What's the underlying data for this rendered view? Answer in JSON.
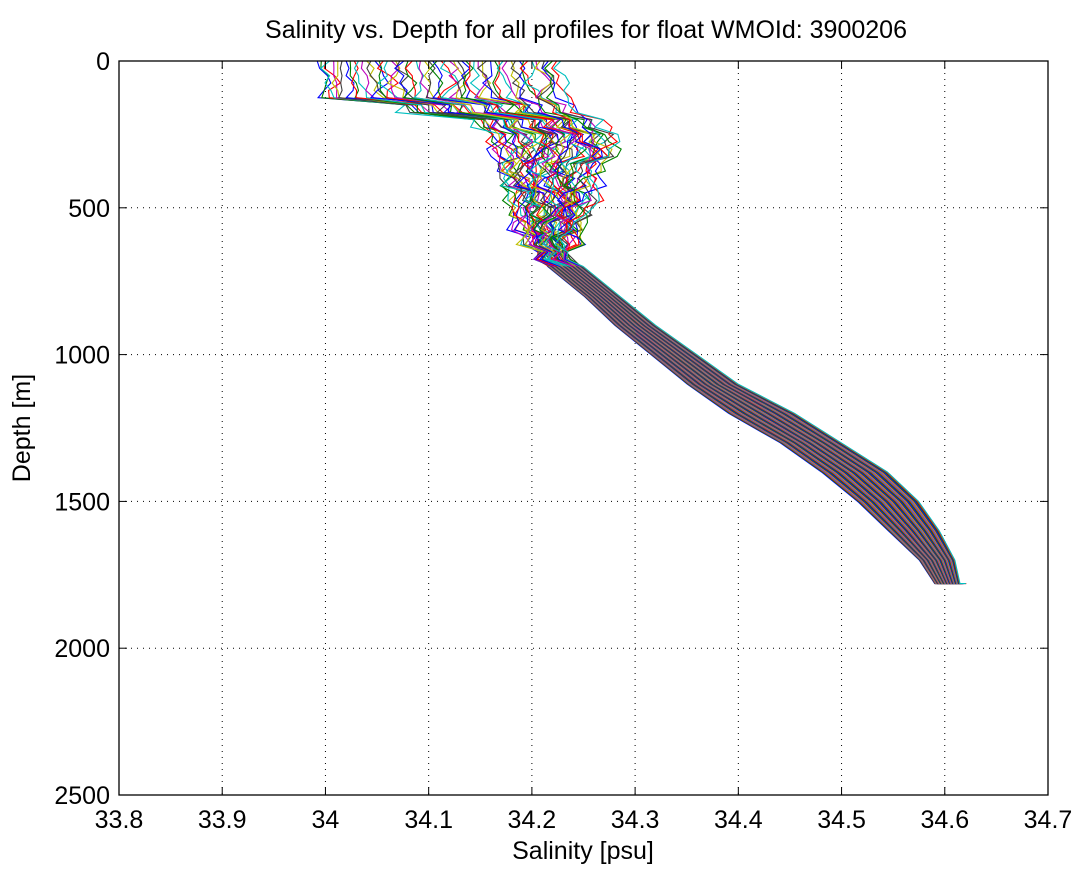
{
  "chart_data": {
    "type": "line",
    "title": "Salinity vs. Depth for all profiles for float WMOId: 3900206",
    "xlabel": "Salinity [psu]",
    "ylabel": "Depth [m]",
    "xlim": [
      33.8,
      34.7
    ],
    "ylim": [
      0,
      2500
    ],
    "y_reversed": true,
    "grid": true,
    "x_ticks": [
      33.8,
      33.9,
      34.0,
      34.1,
      34.2,
      34.3,
      34.4,
      34.5,
      34.6,
      34.7
    ],
    "x_tick_labels": [
      "33.8",
      "33.9",
      "34",
      "34.1",
      "34.2",
      "34.3",
      "34.4",
      "34.5",
      "34.6",
      "34.7"
    ],
    "y_ticks": [
      0,
      500,
      1000,
      1500,
      2000,
      2500
    ],
    "y_tick_labels": [
      "0",
      "500",
      "1000",
      "1500",
      "2000",
      "2500"
    ],
    "profile_count": 60,
    "series_colors": [
      "#0000ff",
      "#008000",
      "#ff0000",
      "#00bfbf",
      "#bf00bf",
      "#bfbf00",
      "#404040"
    ],
    "representative_profile": {
      "depth": [
        0,
        50,
        100,
        150,
        200,
        250,
        300,
        350,
        400,
        450,
        500,
        550,
        600,
        650,
        700,
        800,
        900,
        1000,
        1100,
        1200,
        1300,
        1400,
        1500,
        1600,
        1700,
        1780
      ],
      "salinity": [
        34.1,
        34.1,
        34.12,
        34.17,
        34.22,
        34.23,
        34.22,
        34.21,
        34.205,
        34.2,
        34.2,
        34.205,
        34.21,
        34.22,
        34.235,
        34.27,
        34.3,
        34.34,
        34.38,
        34.43,
        34.48,
        34.52,
        34.55,
        34.575,
        34.595,
        34.605
      ]
    },
    "envelope": {
      "depth": [
        0,
        50,
        100,
        150,
        200,
        250,
        300,
        350,
        400,
        450,
        500,
        550,
        600,
        650,
        700,
        800,
        900,
        1000,
        1100,
        1200,
        1300,
        1400,
        1500,
        1600,
        1700,
        1780
      ],
      "salinity_min": [
        33.99,
        33.99,
        34.0,
        34.07,
        34.15,
        34.17,
        34.165,
        34.165,
        34.17,
        34.185,
        34.19,
        34.19,
        34.195,
        34.205,
        34.215,
        34.25,
        34.28,
        34.315,
        34.35,
        34.39,
        34.44,
        34.48,
        34.515,
        34.545,
        34.575,
        34.59
      ],
      "salinity_max": [
        34.23,
        34.23,
        34.23,
        34.24,
        34.26,
        34.275,
        34.28,
        34.265,
        34.26,
        34.255,
        34.25,
        34.245,
        34.24,
        34.235,
        34.25,
        34.285,
        34.32,
        34.36,
        34.4,
        34.455,
        34.5,
        34.545,
        34.575,
        34.595,
        34.61,
        34.615
      ]
    }
  }
}
